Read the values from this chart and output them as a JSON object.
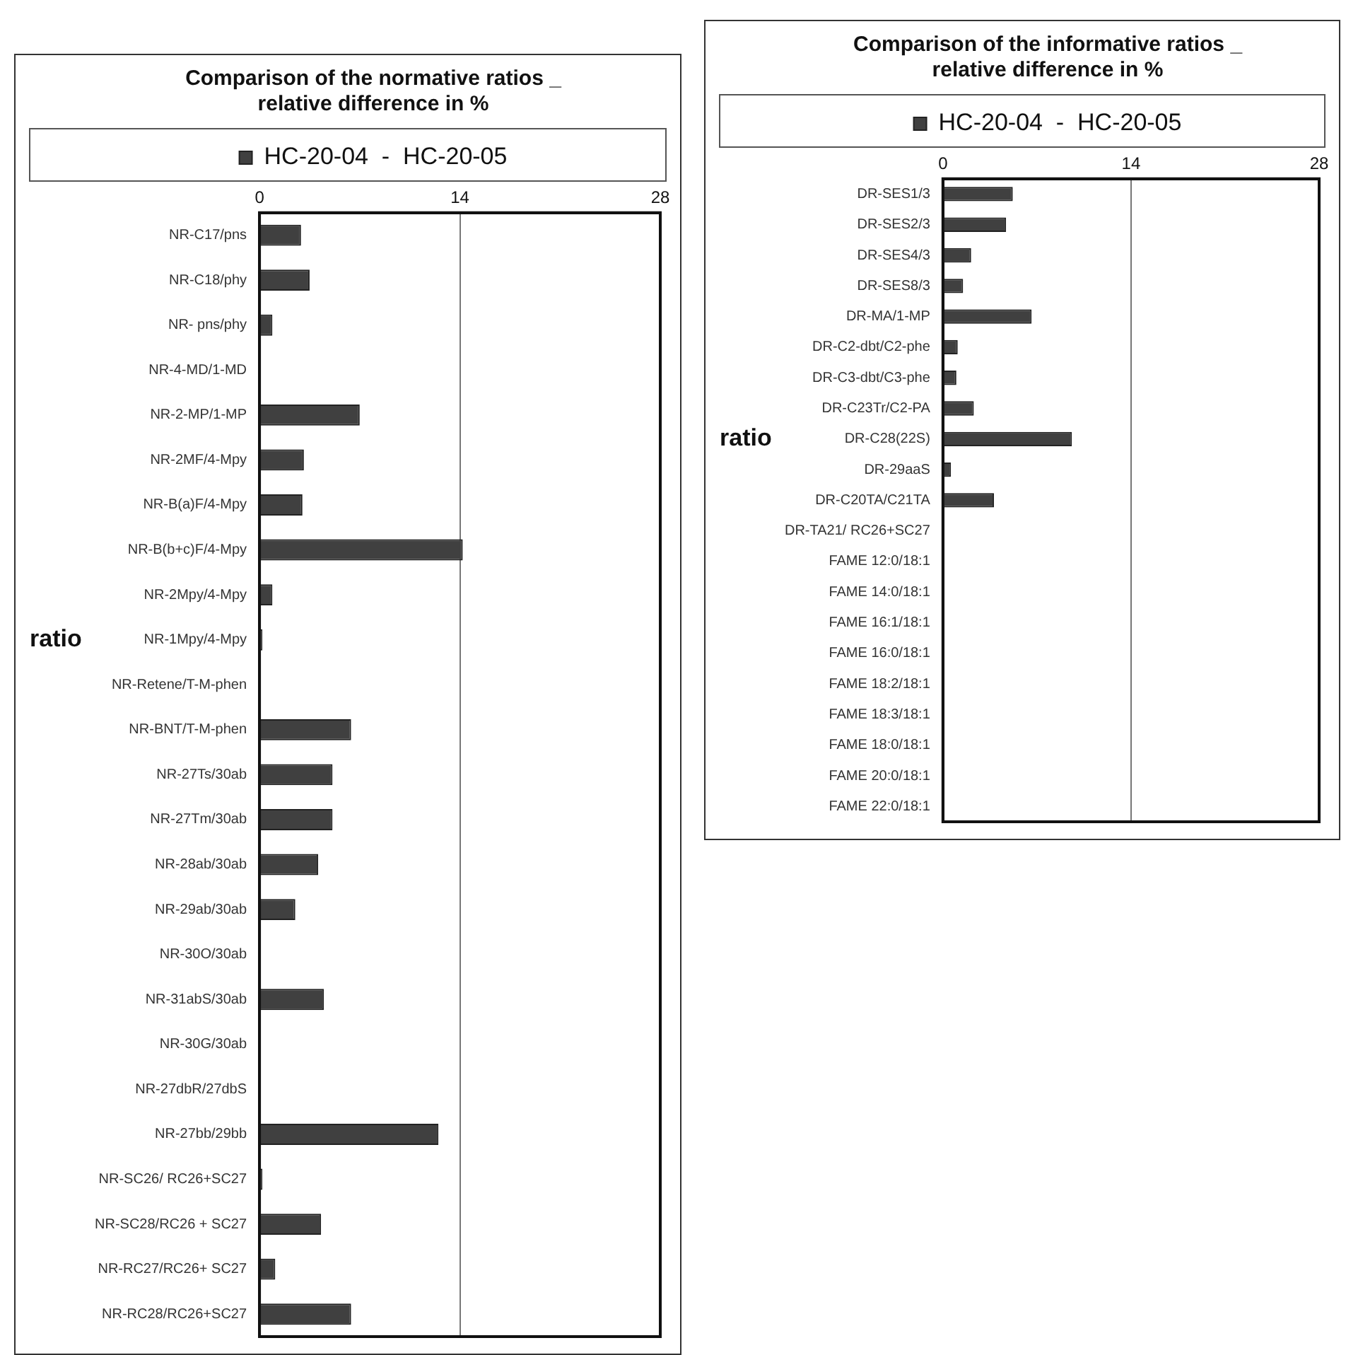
{
  "chart_data": [
    {
      "type": "bar",
      "orientation": "horizontal",
      "title": [
        "Comparison of the normative ratios _",
        "relative difference in %"
      ],
      "ylabel": "ratio",
      "categories": [
        "NR-C17/pns",
        "NR-C18/phy",
        "NR- pns/phy",
        "NR-4-MD/1-MD",
        "NR-2-MP/1-MP",
        "NR-2MF/4-Mpy",
        "NR-B(a)F/4-Mpy",
        "NR-B(b+c)F/4-Mpy",
        "NR-2Mpy/4-Mpy",
        "NR-1Mpy/4-Mpy",
        "NR-Retene/T-M-phen",
        "NR-BNT/T-M-phen",
        "NR-27Ts/30ab",
        "NR-27Tm/30ab",
        "NR-28ab/30ab",
        "NR-29ab/30ab",
        "NR-30O/30ab",
        "NR-31abS/30ab",
        "NR-30G/30ab",
        "NR-27dbR/27dbS",
        "NR-27bb/29bb",
        "NR-SC26/ RC26+SC27",
        "NR-SC28/RC26 + SC27",
        "NR-RC27/RC26+ SC27",
        "NR-RC28/RC26+SC27"
      ],
      "series": [
        {
          "name": "HC-20-04  -  HC-20-05",
          "color": "#404040",
          "values": [
            2.9,
            3.5,
            0.9,
            0,
            7.0,
            3.1,
            3.0,
            14.2,
            0.9,
            0.2,
            0,
            6.4,
            5.1,
            5.1,
            4.1,
            2.5,
            0,
            4.5,
            0,
            0,
            12.5,
            0.2,
            4.3,
            1.1,
            6.4
          ]
        }
      ],
      "xlim": [
        0,
        28
      ],
      "xticks": [
        0,
        14,
        28
      ],
      "grid": "x",
      "legend": "top"
    },
    {
      "type": "bar",
      "orientation": "horizontal",
      "title": [
        "Comparison of the informative ratios _",
        "relative difference in %"
      ],
      "ylabel": "ratio",
      "categories": [
        "DR-SES1/3",
        "DR-SES2/3",
        "DR-SES4/3",
        "DR-SES8/3",
        "DR-MA/1-MP",
        "DR-C2-dbt/C2-phe",
        "DR-C3-dbt/C3-phe",
        "DR-C23Tr/C2-PA",
        "DR-C28(22S)",
        "DR-29aaS",
        "DR-C20TA/C21TA",
        "DR-TA21/ RC26+SC27",
        "FAME 12:0/18:1",
        "FAME 14:0/18:1",
        "FAME 16:1/18:1",
        "FAME 16:0/18:1",
        "FAME 18:2/18:1",
        "FAME 18:3/18:1",
        "FAME 18:0/18:1",
        "FAME 20:0/18:1",
        "FAME 22:0/18:1"
      ],
      "series": [
        {
          "name": "HC-20-04  -  HC-20-05",
          "color": "#404040",
          "values": [
            5.2,
            4.7,
            2.1,
            1.5,
            6.6,
            1.1,
            1.0,
            2.3,
            9.6,
            0.6,
            3.8,
            0,
            0,
            0,
            0,
            0,
            0,
            0,
            0,
            0,
            0
          ]
        }
      ],
      "xlim": [
        0,
        28
      ],
      "xticks": [
        0,
        14,
        28
      ],
      "grid": "x",
      "legend": "top"
    }
  ]
}
